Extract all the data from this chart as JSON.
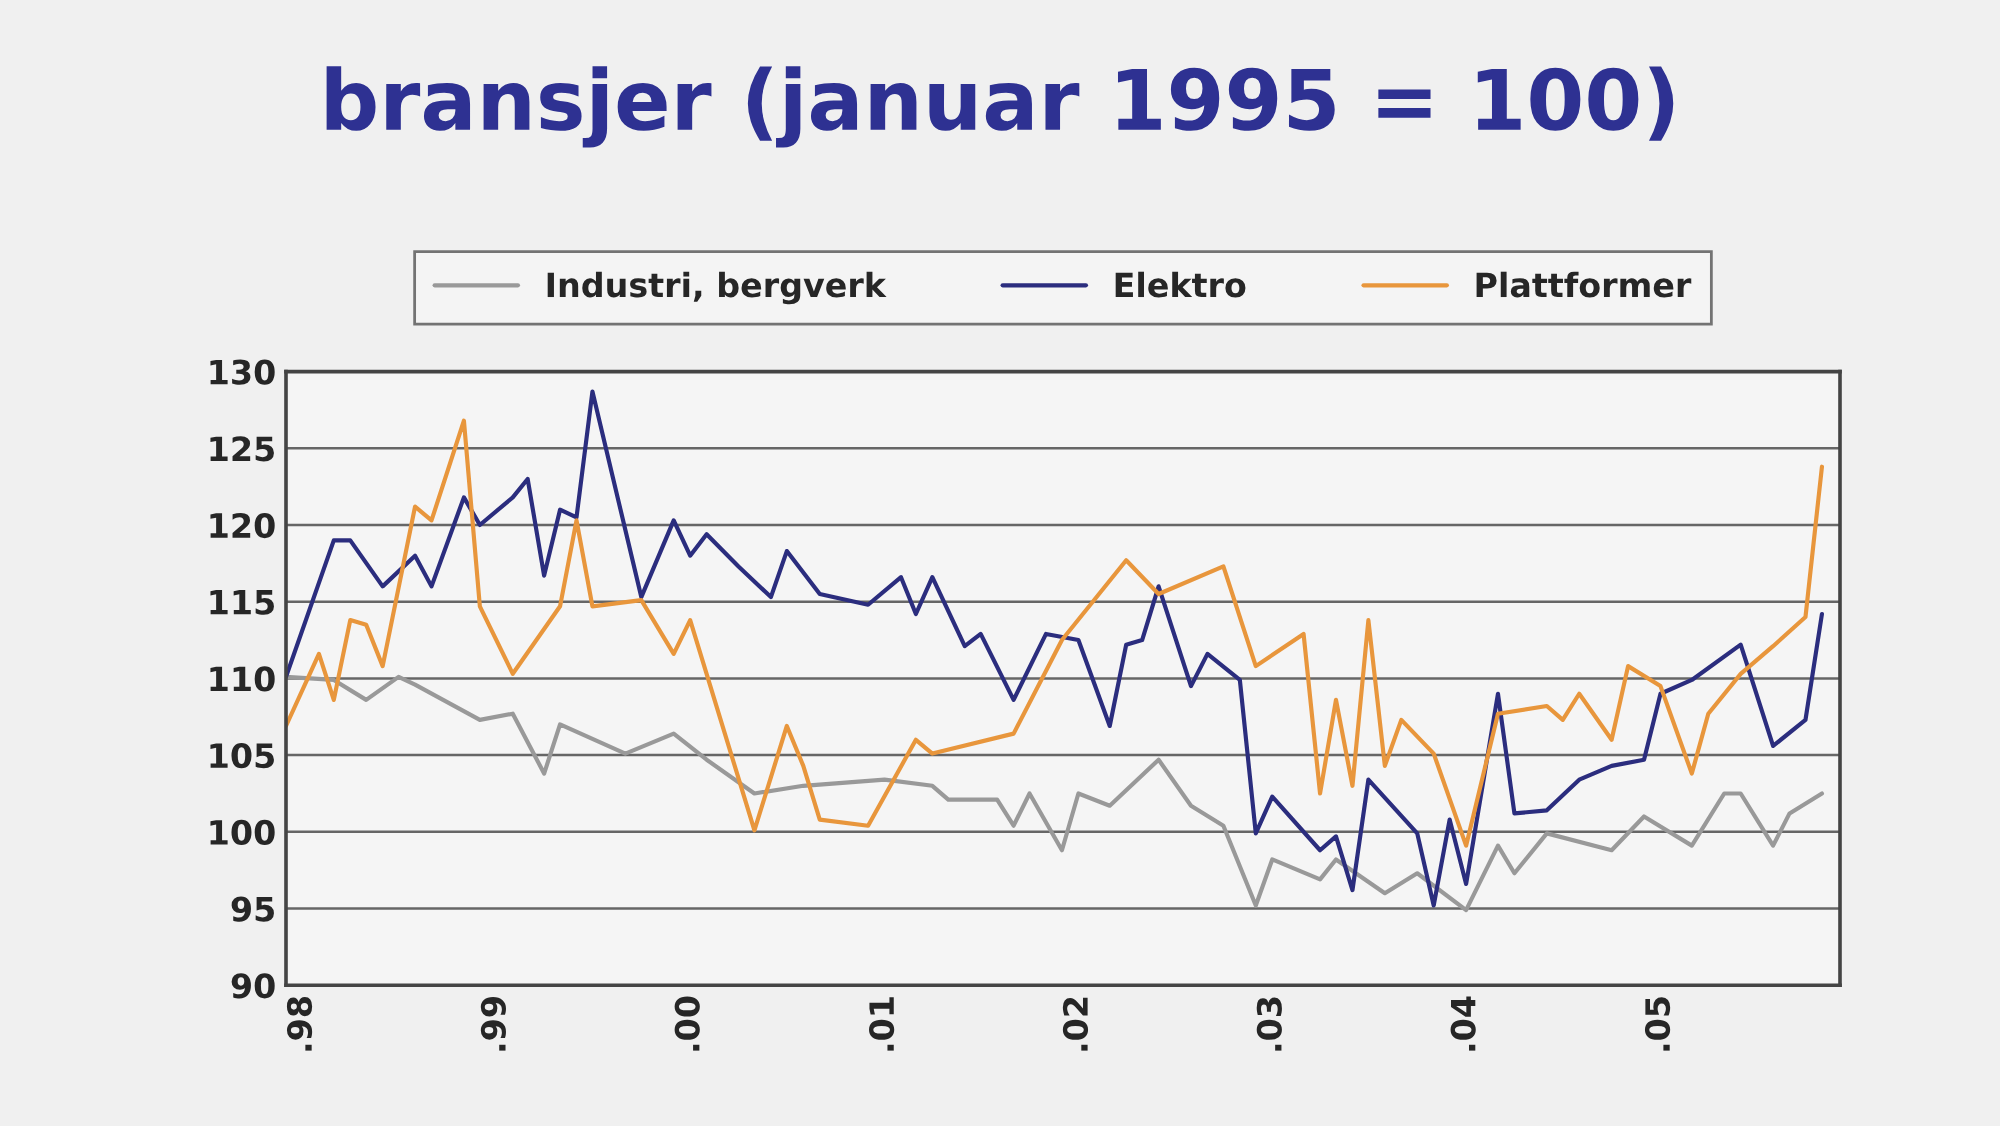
{
  "chart_data": {
    "type": "line",
    "title": "bransjer (januar 1995 = 100)",
    "xlim": [
      "1997-12-01",
      "2005-12-05"
    ],
    "xticks": [
      {
        "value": "1998-01",
        "label": ".98"
      },
      {
        "value": "1999-01",
        "label": ".99"
      },
      {
        "value": "2000-01",
        "label": ".00"
      },
      {
        "value": "2001-01",
        "label": ".01"
      },
      {
        "value": "2002-01",
        "label": ".02"
      },
      {
        "value": "2003-01",
        "label": ".03"
      },
      {
        "value": "2004-01",
        "label": ".04"
      },
      {
        "value": "2005-01",
        "label": ".05"
      }
    ],
    "ylim": [
      90,
      130
    ],
    "yticks": [
      90,
      95,
      100,
      105,
      110,
      115,
      120,
      125,
      130
    ],
    "grid": "y",
    "legend": "top",
    "marker": "none",
    "line_style": "solid",
    "series": [
      {
        "name": "Industri, bergverk",
        "color": "#999999",
        "x": [
          "1997-12",
          "1998-03",
          "1998-05",
          "1998-07",
          "1998-08",
          "1998-12",
          "1999-02",
          "1999-04",
          "1999-05",
          "1999-09",
          "1999-12",
          "2000-02",
          "2000-05",
          "2000-08",
          "2001-01",
          "2001-04",
          "2001-05",
          "2001-08",
          "2001-09",
          "2001-10",
          "2001-12",
          "2002-01",
          "2002-03",
          "2002-06",
          "2002-08",
          "2002-10",
          "2002-12",
          "2003-01",
          "2003-04",
          "2003-05",
          "2003-08",
          "2003-10",
          "2004-01",
          "2004-03",
          "2004-04",
          "2004-06",
          "2004-10",
          "2004-12",
          "2005-03",
          "2005-05",
          "2005-06",
          "2005-08",
          "2005-09",
          "2005-11"
        ],
        "values": [
          110.1,
          109.9,
          108.6,
          110.1,
          109.6,
          107.3,
          107.7,
          103.8,
          107,
          105.1,
          106.4,
          104.7,
          102.5,
          103,
          103.4,
          103,
          102.1,
          102.1,
          100.4,
          102.5,
          98.8,
          102.5,
          101.7,
          104.7,
          101.7,
          100.4,
          95.2,
          98.2,
          96.9,
          98.2,
          96,
          97.3,
          94.9,
          99.1,
          97.3,
          99.9,
          98.8,
          101,
          99.1,
          102.5,
          102.5,
          99.1,
          101.2,
          102.5
        ]
      },
      {
        "name": "Elektro",
        "color": "#2b2d7e",
        "x": [
          "1997-12",
          "1998-03",
          "1998-04",
          "1998-06",
          "1998-08",
          "1998-09",
          "1998-11",
          "1998-12",
          "1999-02",
          "1999-03",
          "1999-04",
          "1999-05",
          "1999-06",
          "1999-07",
          "1999-10",
          "1999-12",
          "2000-01",
          "2000-02",
          "2000-04",
          "2000-06",
          "2000-07",
          "2000-09",
          "2000-12",
          "2001-02",
          "2001-03",
          "2001-04",
          "2001-06",
          "2001-07",
          "2001-09",
          "2001-11",
          "2002-01",
          "2002-03",
          "2002-04",
          "2002-05",
          "2002-06",
          "2002-08",
          "2002-09",
          "2002-11",
          "2002-12",
          "2003-01",
          "2003-04",
          "2003-05",
          "2003-06",
          "2003-07",
          "2003-10",
          "2003-11",
          "2003-12",
          "2004-01",
          "2004-03",
          "2004-04",
          "2004-06",
          "2004-08",
          "2004-10",
          "2004-12",
          "2005-01",
          "2005-03",
          "2005-06",
          "2005-08",
          "2005-10",
          "2005-11"
        ],
        "values": [
          110.1,
          119,
          119,
          116,
          118,
          116,
          121.8,
          120,
          121.8,
          123,
          116.7,
          121,
          120.5,
          128.7,
          115.3,
          120.3,
          118,
          119.4,
          117.3,
          115.3,
          118.3,
          115.5,
          114.8,
          116.6,
          114.2,
          116.6,
          112.1,
          112.9,
          108.6,
          112.9,
          112.5,
          106.9,
          112.2,
          112.5,
          116,
          109.5,
          111.6,
          109.9,
          99.9,
          102.3,
          98.8,
          99.7,
          96.2,
          103.4,
          99.9,
          95.2,
          100.8,
          96.6,
          109,
          101.2,
          101.4,
          103.4,
          104.3,
          104.7,
          109,
          109.9,
          112.2,
          105.6,
          107.3,
          114.2
        ]
      },
      {
        "name": "Plattformer",
        "color": "#e8963c",
        "x": [
          "1997-12",
          "1998-02",
          "1998-03",
          "1998-04",
          "1998-05",
          "1998-06",
          "1998-08",
          "1998-09",
          "1998-11",
          "1998-12",
          "1999-02",
          "1999-05",
          "1999-06",
          "1999-07",
          "1999-10",
          "1999-12",
          "2000-01",
          "2000-05",
          "2000-07",
          "2000-08",
          "2000-09",
          "2000-12",
          "2001-03",
          "2001-04",
          "2001-09",
          "2001-12",
          "2002-04",
          "2002-06",
          "2002-10",
          "2002-12",
          "2003-03",
          "2003-04",
          "2003-05",
          "2003-06",
          "2003-07",
          "2003-08",
          "2003-09",
          "2003-11",
          "2004-01",
          "2004-03",
          "2004-06",
          "2004-07",
          "2004-08",
          "2004-10",
          "2004-11",
          "2005-01",
          "2005-03",
          "2005-04",
          "2005-06",
          "2005-08",
          "2005-10",
          "2005-11"
        ],
        "values": [
          106.9,
          111.6,
          108.6,
          113.8,
          113.5,
          110.8,
          121.2,
          120.3,
          126.8,
          114.7,
          110.3,
          114.7,
          120.3,
          114.7,
          115.1,
          111.6,
          113.8,
          100.1,
          106.9,
          104.3,
          100.8,
          100.4,
          106,
          105.1,
          106.4,
          112.5,
          117.7,
          115.5,
          117.3,
          110.8,
          112.9,
          102.5,
          108.6,
          103,
          113.8,
          104.3,
          107.3,
          105.1,
          99.1,
          107.7,
          108.2,
          107.3,
          109,
          106,
          110.8,
          109.5,
          103.8,
          107.7,
          110.3,
          112.1,
          114,
          123.8
        ]
      }
    ]
  }
}
